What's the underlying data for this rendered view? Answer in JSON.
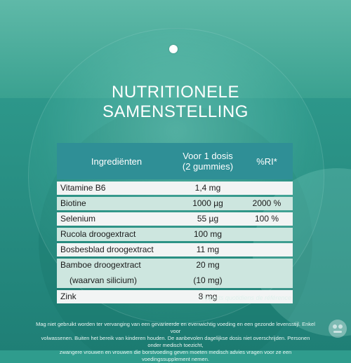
{
  "title": {
    "line1": "NUTRITIONELE",
    "line2": "SAMENSTELLING"
  },
  "table": {
    "headers": {
      "ingredients": "Ingrediënten",
      "dose_line1": "Voor 1 dosis",
      "dose_line2": "(2 gummies)",
      "ri": "%RI*"
    },
    "rows": [
      {
        "name": "Vitamine B6",
        "dose": "1,4 mg",
        "ri": ""
      },
      {
        "name": "Biotine",
        "dose": "1000 µg",
        "ri": "2000 %"
      },
      {
        "name": "Selenium",
        "dose": "55 µg",
        "ri": "100 %"
      },
      {
        "name": "Rucola droogextract",
        "dose": "100 mg",
        "ri": ""
      },
      {
        "name": "Bosbesblad droogextract",
        "dose": "11 mg",
        "ri": ""
      },
      {
        "name": "Bamboe droogextract",
        "dose": "20 mg",
        "ri": "",
        "sub_name": "(waarvan silicium)",
        "sub_dose": "(10 mg)"
      },
      {
        "name": "Zink",
        "dose": "8 mg",
        "ri": ""
      }
    ]
  },
  "footnote": "* Apports quotidiens de référence",
  "disclaimer": {
    "line1": "Mag niet gebruikt worden ter vervanging van een gevarieerde en evenwichtig voeding en een gezonde levensstijl. Enkel voor",
    "line2": "volwassenen. Buiten het bereik van kinderen houden. De aanbevolen dagelijkse dosis niet overschrijden. Personen onder medisch toezicht,",
    "line3": "zwangere vrouwen en vrouwen die borstvoeding geven moeten medisch advies vragen voor ze een voedingssupplement nemen."
  },
  "colors": {
    "header_bg": "#2f8f96",
    "row_light": "#f2f4f4",
    "row_mint": "#cde6df",
    "background": "#2f9c8d"
  },
  "icons": {
    "hang_hole": "hang-hole-icon",
    "watermark": "pharmacy-watermark-icon"
  }
}
